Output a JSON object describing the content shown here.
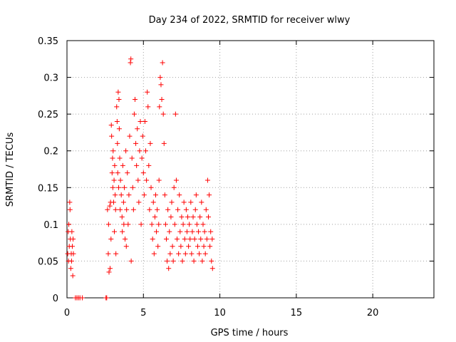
{
  "chart_data": {
    "type": "scatter",
    "title": "Day 234 of 2022, SRMTID for receiver wlwy",
    "xlabel": "GPS time / hours",
    "ylabel": "SRMTID / TECUs",
    "xlim": [
      0,
      24
    ],
    "ylim": [
      0,
      0.35
    ],
    "grid": true,
    "x_ticks": [
      0,
      5,
      10,
      15,
      20
    ],
    "x_tick_labels": [
      "0",
      "5",
      "10",
      "15",
      "20"
    ],
    "y_ticks": [
      0,
      0.05,
      0.1,
      0.15,
      0.2,
      0.25,
      0.3,
      0.35
    ],
    "y_tick_labels": [
      "0",
      "0.05",
      "0.1",
      "0.15",
      "0.2",
      "0.25",
      "0.3",
      "0.35"
    ],
    "marker": "+",
    "marker_color": "#ff0000",
    "series": [
      {
        "name": "SRMTID",
        "points": [
          [
            0.05,
            0.06
          ],
          [
            0.08,
            0.09
          ],
          [
            0.1,
            0.05
          ],
          [
            0.12,
            0.1
          ],
          [
            0.15,
            0.07
          ],
          [
            0.18,
            0.13
          ],
          [
            0.2,
            0.12
          ],
          [
            0.22,
            0.08
          ],
          [
            0.25,
            0.04
          ],
          [
            0.28,
            0.06
          ],
          [
            0.3,
            0.05
          ],
          [
            0.32,
            0.09
          ],
          [
            0.35,
            0.07
          ],
          [
            0.38,
            0.03
          ],
          [
            0.4,
            0.08
          ],
          [
            0.42,
            0.06
          ],
          [
            0.55,
            0.0
          ],
          [
            0.65,
            0.0
          ],
          [
            0.75,
            0.0
          ],
          [
            0.85,
            0.0
          ],
          [
            1.0,
            0.0
          ],
          [
            2.55,
            0.0
          ],
          [
            2.6,
            0.0
          ],
          [
            2.65,
            0.12
          ],
          [
            2.7,
            0.06
          ],
          [
            2.72,
            0.1
          ],
          [
            2.75,
            0.035
          ],
          [
            2.8,
            0.125
          ],
          [
            2.82,
            0.04
          ],
          [
            2.85,
            0.13
          ],
          [
            2.88,
            0.08
          ],
          [
            2.9,
            0.235
          ],
          [
            2.92,
            0.22
          ],
          [
            2.95,
            0.17
          ],
          [
            2.98,
            0.19
          ],
          [
            3.0,
            0.15
          ],
          [
            3.02,
            0.2
          ],
          [
            3.05,
            0.13
          ],
          [
            3.08,
            0.16
          ],
          [
            3.1,
            0.09
          ],
          [
            3.12,
            0.18
          ],
          [
            3.15,
            0.14
          ],
          [
            3.18,
            0.12
          ],
          [
            3.2,
            0.06
          ],
          [
            3.25,
            0.26
          ],
          [
            3.28,
            0.24
          ],
          [
            3.3,
            0.21
          ],
          [
            3.32,
            0.17
          ],
          [
            3.35,
            0.28
          ],
          [
            3.38,
            0.15
          ],
          [
            3.4,
            0.27
          ],
          [
            3.42,
            0.23
          ],
          [
            3.45,
            0.19
          ],
          [
            3.48,
            0.12
          ],
          [
            3.5,
            0.16
          ],
          [
            3.55,
            0.14
          ],
          [
            3.6,
            0.11
          ],
          [
            3.62,
            0.09
          ],
          [
            3.65,
            0.18
          ],
          [
            3.7,
            0.13
          ],
          [
            3.72,
            0.1
          ],
          [
            3.75,
            0.15
          ],
          [
            3.8,
            0.08
          ],
          [
            3.85,
            0.2
          ],
          [
            3.88,
            0.07
          ],
          [
            3.9,
            0.12
          ],
          [
            3.95,
            0.17
          ],
          [
            4.0,
            0.1
          ],
          [
            4.05,
            0.14
          ],
          [
            4.1,
            0.22
          ],
          [
            4.15,
            0.32
          ],
          [
            4.18,
            0.325
          ],
          [
            4.2,
            0.05
          ],
          [
            4.25,
            0.19
          ],
          [
            4.3,
            0.15
          ],
          [
            4.35,
            0.12
          ],
          [
            4.4,
            0.25
          ],
          [
            4.45,
            0.27
          ],
          [
            4.5,
            0.21
          ],
          [
            4.55,
            0.18
          ],
          [
            4.6,
            0.23
          ],
          [
            4.65,
            0.16
          ],
          [
            4.7,
            0.13
          ],
          [
            4.75,
            0.2
          ],
          [
            4.8,
            0.24
          ],
          [
            4.85,
            0.1
          ],
          [
            4.9,
            0.19
          ],
          [
            4.95,
            0.22
          ],
          [
            5.0,
            0.17
          ],
          [
            5.05,
            0.14
          ],
          [
            5.1,
            0.24
          ],
          [
            5.15,
            0.2
          ],
          [
            5.2,
            0.16
          ],
          [
            5.25,
            0.28
          ],
          [
            5.3,
            0.26
          ],
          [
            5.35,
            0.18
          ],
          [
            5.4,
            0.12
          ],
          [
            5.45,
            0.21
          ],
          [
            5.5,
            0.15
          ],
          [
            5.55,
            0.1
          ],
          [
            5.6,
            0.08
          ],
          [
            5.65,
            0.13
          ],
          [
            5.7,
            0.06
          ],
          [
            5.75,
            0.11
          ],
          [
            5.8,
            0.14
          ],
          [
            5.85,
            0.09
          ],
          [
            5.9,
            0.12
          ],
          [
            5.95,
            0.07
          ],
          [
            6.0,
            0.1
          ],
          [
            6.02,
            0.16
          ],
          [
            6.05,
            0.26
          ],
          [
            6.1,
            0.3
          ],
          [
            6.15,
            0.29
          ],
          [
            6.2,
            0.27
          ],
          [
            6.25,
            0.32
          ],
          [
            6.3,
            0.25
          ],
          [
            6.35,
            0.21
          ],
          [
            6.4,
            0.14
          ],
          [
            6.45,
            0.1
          ],
          [
            6.5,
            0.08
          ],
          [
            6.55,
            0.05
          ],
          [
            6.6,
            0.12
          ],
          [
            6.65,
            0.04
          ],
          [
            6.7,
            0.09
          ],
          [
            6.75,
            0.06
          ],
          [
            6.8,
            0.11
          ],
          [
            6.85,
            0.13
          ],
          [
            6.9,
            0.07
          ],
          [
            6.95,
            0.05
          ],
          [
            7.0,
            0.15
          ],
          [
            7.05,
            0.1
          ],
          [
            7.1,
            0.25
          ],
          [
            7.15,
            0.16
          ],
          [
            7.2,
            0.08
          ],
          [
            7.25,
            0.12
          ],
          [
            7.3,
            0.06
          ],
          [
            7.35,
            0.14
          ],
          [
            7.4,
            0.09
          ],
          [
            7.45,
            0.07
          ],
          [
            7.5,
            0.11
          ],
          [
            7.55,
            0.05
          ],
          [
            7.6,
            0.1
          ],
          [
            7.65,
            0.13
          ],
          [
            7.7,
            0.08
          ],
          [
            7.75,
            0.06
          ],
          [
            7.8,
            0.12
          ],
          [
            7.85,
            0.09
          ],
          [
            7.9,
            0.11
          ],
          [
            7.95,
            0.07
          ],
          [
            8.0,
            0.1
          ],
          [
            8.05,
            0.08
          ],
          [
            8.1,
            0.13
          ],
          [
            8.15,
            0.06
          ],
          [
            8.2,
            0.09
          ],
          [
            8.25,
            0.11
          ],
          [
            8.3,
            0.05
          ],
          [
            8.35,
            0.08
          ],
          [
            8.4,
            0.12
          ],
          [
            8.45,
            0.14
          ],
          [
            8.5,
            0.1
          ],
          [
            8.55,
            0.07
          ],
          [
            8.6,
            0.09
          ],
          [
            8.65,
            0.06
          ],
          [
            8.7,
            0.11
          ],
          [
            8.75,
            0.08
          ],
          [
            8.8,
            0.13
          ],
          [
            8.85,
            0.05
          ],
          [
            8.9,
            0.1
          ],
          [
            8.95,
            0.07
          ],
          [
            9.0,
            0.09
          ],
          [
            9.05,
            0.06
          ],
          [
            9.1,
            0.12
          ],
          [
            9.15,
            0.08
          ],
          [
            9.2,
            0.16
          ],
          [
            9.25,
            0.11
          ],
          [
            9.3,
            0.14
          ],
          [
            9.35,
            0.07
          ],
          [
            9.4,
            0.09
          ],
          [
            9.45,
            0.05
          ],
          [
            9.5,
            0.08
          ],
          [
            9.52,
            0.04
          ]
        ]
      }
    ]
  }
}
